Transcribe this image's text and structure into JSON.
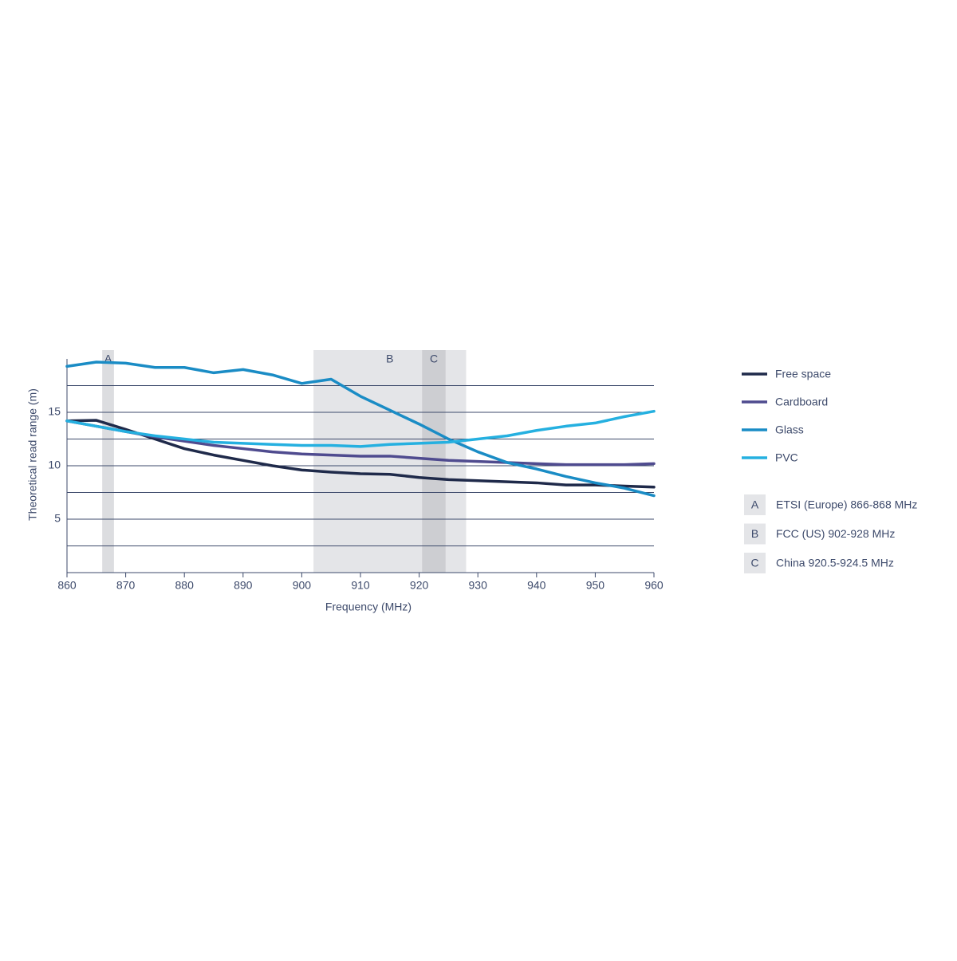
{
  "chart_data": {
    "type": "line",
    "x_label": "Frequency (MHz)",
    "y_label": "Theoretical read range (m)",
    "x": [
      860,
      865,
      870,
      875,
      880,
      885,
      890,
      895,
      900,
      905,
      910,
      915,
      920,
      925,
      930,
      935,
      940,
      945,
      950,
      955,
      960
    ],
    "series": [
      {
        "name": "Free space",
        "color": "#1f2a4a",
        "values": [
          14.2,
          14.25,
          13.4,
          12.5,
          11.6,
          11.0,
          10.5,
          10.0,
          9.6,
          9.4,
          9.25,
          9.2,
          8.9,
          8.7,
          8.6,
          8.5,
          8.4,
          8.2,
          8.2,
          8.1,
          8.0
        ]
      },
      {
        "name": "Cardboard",
        "color": "#4f4b8f",
        "values": [
          14.2,
          13.7,
          13.2,
          12.7,
          12.3,
          11.9,
          11.6,
          11.3,
          11.1,
          11.0,
          10.9,
          10.9,
          10.7,
          10.5,
          10.4,
          10.3,
          10.2,
          10.1,
          10.1,
          10.1,
          10.2
        ]
      },
      {
        "name": "Glass",
        "color": "#1a8cc5",
        "values": [
          19.3,
          19.7,
          19.6,
          19.2,
          19.2,
          18.7,
          19.0,
          18.5,
          17.7,
          18.1,
          16.5,
          15.2,
          13.9,
          12.5,
          11.3,
          10.3,
          9.7,
          9.0,
          8.4,
          7.9,
          7.2
        ]
      },
      {
        "name": "PVC",
        "color": "#25b0e0",
        "values": [
          14.2,
          13.7,
          13.2,
          12.8,
          12.5,
          12.2,
          12.1,
          12.0,
          11.9,
          11.9,
          11.8,
          12.0,
          12.1,
          12.2,
          12.5,
          12.8,
          13.3,
          13.7,
          14.0,
          14.6,
          15.1
        ]
      }
    ],
    "bands": [
      {
        "label": "A",
        "name": "ETSI (Europe) 866-868 MHz",
        "start": 866,
        "end": 868,
        "color": "#dcdde0"
      },
      {
        "label": "B",
        "name": "FCC (US) 902-928 MHz",
        "start": 902,
        "end": 928,
        "color": "#e4e5e8"
      },
      {
        "label": "C",
        "name": "China 920.5-924.5 MHz",
        "start": 920.5,
        "end": 924.5,
        "color": "#cdced2"
      }
    ],
    "xlim": [
      860,
      960
    ],
    "ylim": [
      0,
      20
    ],
    "xticks": [
      860,
      870,
      880,
      890,
      900,
      910,
      920,
      930,
      940,
      950,
      960
    ],
    "yticks": [
      5,
      10,
      15
    ],
    "ygrid": [
      2.5,
      5,
      7.5,
      10,
      12.5,
      15,
      17.5
    ],
    "grid": true
  }
}
